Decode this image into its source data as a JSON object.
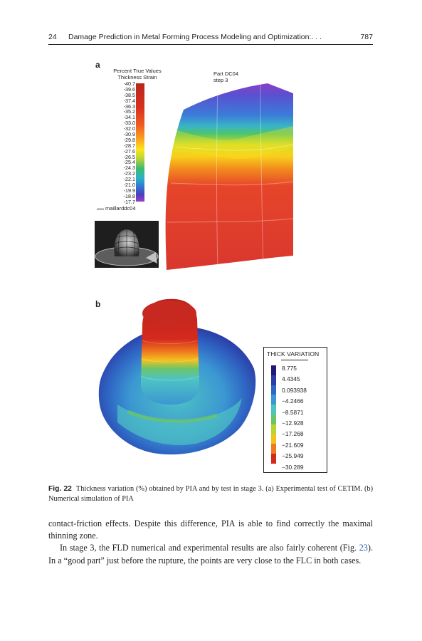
{
  "running_head": {
    "page_left": "24",
    "title": "Damage Prediction in Metal Forming Process Modeling and Optimization:. . .",
    "page_right": "787"
  },
  "panel_a": {
    "label": "a",
    "legend_title_1": "Percent True Values",
    "legend_title_2": "Thickness Strain",
    "legend_values": [
      "-40.7",
      "-39.6",
      "-38.5",
      "-37.4",
      "-36.3",
      "-35.2",
      "-34.1",
      "-33.0",
      "-32.0",
      "-30.9",
      "-29.8",
      "-28.7",
      "-27.6",
      "-26.5",
      "-25.4",
      "-24.3",
      "-23.2",
      "-22.1",
      "-21.0",
      "-19.9",
      "-18.8",
      "-17.7"
    ],
    "part_line_1": "Part  DC04",
    "part_line_2": "step 3",
    "mesh_label": "maillarddc04"
  },
  "panel_b": {
    "label": "b",
    "legend_title": "THICK VARIATION",
    "legend_values": [
      "8.775",
      "4.4345",
      "0.093938",
      "−4.2466",
      "−8.5871",
      "−12.928",
      "−17.268",
      "−21.609",
      "−25.949",
      "−30.289"
    ],
    "legend_colors": [
      "#231a78",
      "#2b3ea8",
      "#2f66c4",
      "#3b97d2",
      "#4ec3c4",
      "#6cc46a",
      "#b9d431",
      "#f2c21d",
      "#f07a1f",
      "#d42a1e"
    ]
  },
  "caption": {
    "label": "Fig. 22",
    "text": "Thickness variation (%) obtained by PIA and by test in stage 3. (a) Experimental test of CETIM. (b) Numerical simulation of PIA"
  },
  "body": {
    "p1": "contact-friction effects. Despite this difference, PIA is able to find correctly the maximal thinning zone.",
    "p2_before": "In stage 3, the FLD numerical and experimental results are also fairly coherent (Fig. ",
    "p2_ref": "23",
    "p2_after": "). In a “good part” just before the rupture, the points are very close to the FLC in both cases."
  }
}
